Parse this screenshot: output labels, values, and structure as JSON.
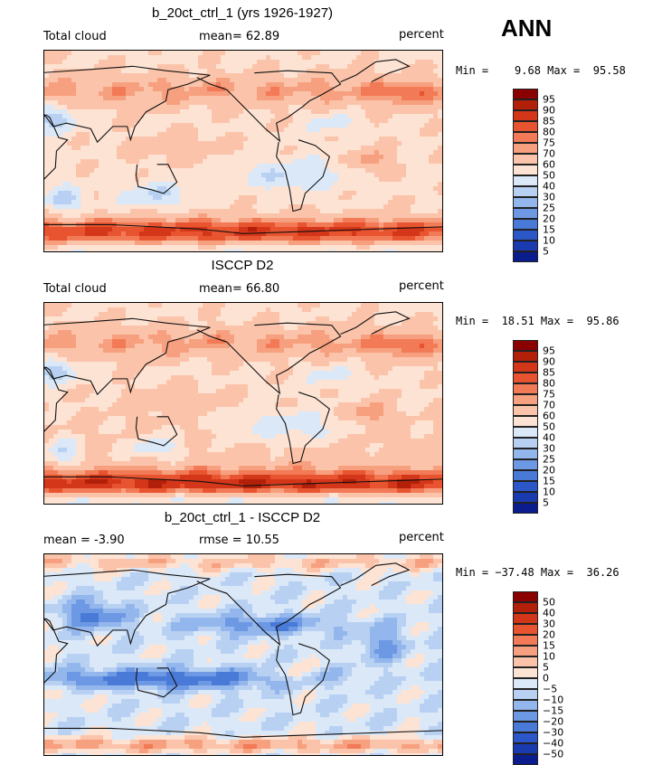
{
  "season": "ANN",
  "panels": [
    {
      "title": "b_20ct_ctrl_1 (yrs 1926-1927)",
      "left_label": "Total cloud",
      "mid_label": "mean=   62.89",
      "right_label": "percent",
      "minmax": "Min =    9.68 Max =  95.58"
    },
    {
      "title": "ISCCP D2",
      "left_label": "Total cloud",
      "mid_label": "mean=   66.80",
      "right_label": "percent",
      "minmax": "Min =  18.51 Max =  95.86"
    },
    {
      "title": "b_20ct_ctrl_1 - ISCCP D2",
      "left_label": "mean =   -3.90",
      "mid_label": "rmse =   10.55",
      "right_label": "percent",
      "minmax": "Min = −37.48 Max =  36.26"
    }
  ],
  "colorbars": {
    "abs": {
      "labels": [
        "95",
        "90",
        "85",
        "80",
        "75",
        "70",
        "60",
        "50",
        "40",
        "30",
        "25",
        "20",
        "15",
        "10",
        "5"
      ],
      "colors": [
        "#8b0000",
        "#b3200a",
        "#d4361a",
        "#e8542f",
        "#f27a56",
        "#f7a07f",
        "#fbc4aa",
        "#fde3d4",
        "#dbe8f8",
        "#b8d1f2",
        "#93b7ec",
        "#6d98e3",
        "#4a7ad8",
        "#2b57c8",
        "#1a3bb0",
        "#0b1c8c"
      ]
    },
    "diff": {
      "labels": [
        "50",
        "40",
        "30",
        "20",
        "15",
        "10",
        "5",
        "0",
        "−5",
        "−10",
        "−15",
        "−20",
        "−30",
        "−40",
        "−50"
      ],
      "colors": [
        "#8b0000",
        "#b3200a",
        "#d4361a",
        "#e8542f",
        "#f27a56",
        "#f7a07f",
        "#fbc4aa",
        "#fde3d4",
        "#dbe8f8",
        "#b8d1f2",
        "#93b7ec",
        "#6d98e3",
        "#4a7ad8",
        "#2b57c8",
        "#1a3bb0",
        "#0b1c8c"
      ]
    }
  },
  "chart_data": [
    {
      "type": "heatmap",
      "title": "b_20ct_ctrl_1 (yrs 1926-1927)",
      "variable": "Total cloud",
      "units": "percent",
      "mean": 62.89,
      "min": 9.68,
      "max": 95.58,
      "contour_levels": [
        5,
        10,
        15,
        20,
        25,
        30,
        40,
        50,
        60,
        70,
        75,
        80,
        85,
        90,
        95
      ]
    },
    {
      "type": "heatmap",
      "title": "ISCCP D2",
      "variable": "Total cloud",
      "units": "percent",
      "mean": 66.8,
      "min": 18.51,
      "max": 95.86,
      "contour_levels": [
        5,
        10,
        15,
        20,
        25,
        30,
        40,
        50,
        60,
        70,
        75,
        80,
        85,
        90,
        95
      ]
    },
    {
      "type": "heatmap",
      "title": "b_20ct_ctrl_1 - ISCCP D2",
      "units": "percent",
      "mean": -3.9,
      "rmse": 10.55,
      "min": -37.48,
      "max": 36.26,
      "contour_levels": [
        -50,
        -40,
        -30,
        -20,
        -15,
        -10,
        -5,
        0,
        5,
        10,
        15,
        20,
        30,
        40,
        50
      ]
    }
  ]
}
